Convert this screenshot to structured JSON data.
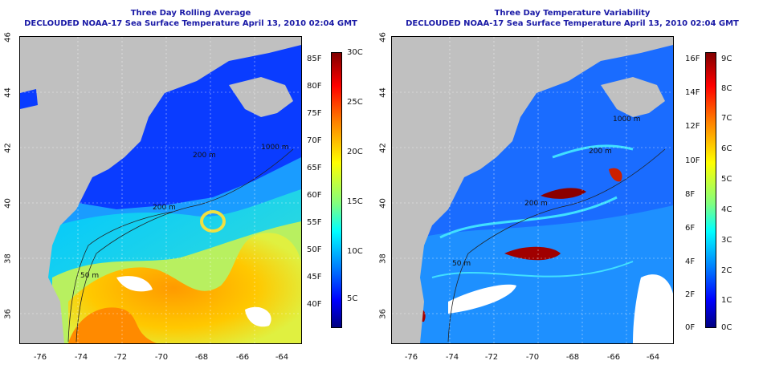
{
  "left": {
    "title_line1": "Three Day Rolling Average",
    "title_line2": "DECLOUDED NOAA-17 Sea Surface Temperature April 13, 2010 02:04 GMT",
    "colorbar_f": [
      "85F",
      "80F",
      "75F",
      "70F",
      "65F",
      "60F",
      "55F",
      "50F",
      "45F",
      "40F"
    ],
    "colorbar_c": [
      "30C",
      "25C",
      "20C",
      "15C",
      "10C",
      "5C"
    ],
    "contour_labels": [
      "200 m",
      "200 m",
      "1000 m",
      "50 m"
    ]
  },
  "right": {
    "title_line1": "Three Day Temperature Variability",
    "title_line2": "DECLOUDED NOAA-17 Sea Surface Temperature April 13, 2010 02:04 GMT",
    "colorbar_f": [
      "16F",
      "14F",
      "12F",
      "10F",
      "8F",
      "6F",
      "4F",
      "2F",
      "0F"
    ],
    "colorbar_c": [
      "9C",
      "8C",
      "7C",
      "6C",
      "5C",
      "4C",
      "3C",
      "2C",
      "1C",
      "0C"
    ],
    "contour_labels": [
      "200 m",
      "1000 m",
      "200 m",
      "50 m"
    ]
  },
  "lat_ticks": [
    "46",
    "44",
    "42",
    "40",
    "38",
    "36"
  ],
  "lon_ticks": [
    "-76",
    "-74",
    "-72",
    "-70",
    "-68",
    "-66",
    "-64"
  ],
  "colors": {
    "land": "#c0c0c0",
    "title": "#1a1aa6",
    "sst_scale": [
      "#000080",
      "#0000ff",
      "#0080ff",
      "#00ffff",
      "#80ff80",
      "#ffff00",
      "#ff8000",
      "#ff0000",
      "#800000"
    ]
  }
}
